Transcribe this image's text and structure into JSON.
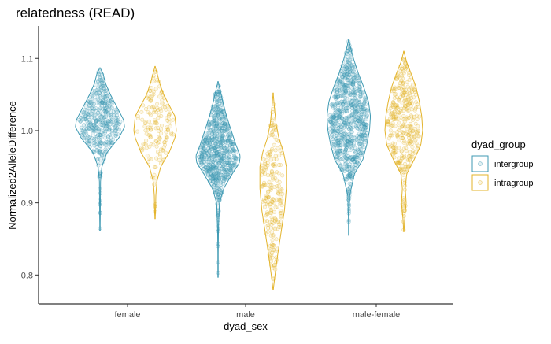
{
  "chart_data": {
    "type": "violin",
    "title": "relatedness (READ)",
    "xlabel": "dyad_sex",
    "ylabel": "Normalized2AlleleDifference",
    "categories": [
      "female",
      "male",
      "male-female"
    ],
    "ylim": [
      0.76,
      1.145
    ],
    "yticks": [
      0.8,
      0.9,
      1.0,
      1.1
    ],
    "ytick_labels": [
      "0.8",
      "0.9",
      "1.0",
      "1.1"
    ],
    "grid": false,
    "legend": {
      "title": "dyad_group",
      "position": "right"
    },
    "series": [
      {
        "name": "intergroup",
        "color": "#3f9ab3",
        "groups": [
          {
            "category": "female",
            "n": 420,
            "profile": [
              [
                0.862,
                0.002
              ],
              [
                0.88,
                0.006
              ],
              [
                0.9,
                0.008
              ],
              [
                0.93,
                0.012
              ],
              [
                0.95,
                0.04
              ],
              [
                0.97,
                0.15
              ],
              [
                0.99,
                0.4
              ],
              [
                1.005,
                0.52
              ],
              [
                1.015,
                0.5
              ],
              [
                1.03,
                0.38
              ],
              [
                1.05,
                0.22
              ],
              [
                1.065,
                0.12
              ],
              [
                1.08,
                0.06
              ],
              [
                1.087,
                0.0
              ]
            ]
          },
          {
            "category": "male",
            "n": 700,
            "profile": [
              [
                0.797,
                0.002
              ],
              [
                0.83,
                0.004
              ],
              [
                0.87,
                0.01
              ],
              [
                0.9,
                0.03
              ],
              [
                0.92,
                0.12
              ],
              [
                0.94,
                0.3
              ],
              [
                0.955,
                0.45
              ],
              [
                0.965,
                0.47
              ],
              [
                0.98,
                0.38
              ],
              [
                1.0,
                0.28
              ],
              [
                1.02,
                0.18
              ],
              [
                1.04,
                0.1
              ],
              [
                1.055,
                0.05
              ],
              [
                1.068,
                0.0
              ]
            ]
          },
          {
            "category": "male-female",
            "n": 800,
            "profile": [
              [
                0.855,
                0.002
              ],
              [
                0.88,
                0.006
              ],
              [
                0.91,
                0.02
              ],
              [
                0.94,
                0.12
              ],
              [
                0.96,
                0.3
              ],
              [
                0.98,
                0.38
              ],
              [
                1.0,
                0.44
              ],
              [
                1.02,
                0.46
              ],
              [
                1.04,
                0.42
              ],
              [
                1.06,
                0.32
              ],
              [
                1.08,
                0.2
              ],
              [
                1.1,
                0.1
              ],
              [
                1.115,
                0.04
              ],
              [
                1.126,
                0.0
              ]
            ]
          }
        ]
      },
      {
        "name": "intragroup",
        "color": "#e3b32a",
        "groups": [
          {
            "category": "female",
            "n": 160,
            "profile": [
              [
                0.878,
                0.003
              ],
              [
                0.89,
                0.01
              ],
              [
                0.91,
                0.016
              ],
              [
                0.93,
                0.04
              ],
              [
                0.95,
                0.12
              ],
              [
                0.97,
                0.3
              ],
              [
                0.99,
                0.42
              ],
              [
                1.0,
                0.45
              ],
              [
                1.02,
                0.42
              ],
              [
                1.035,
                0.3
              ],
              [
                1.05,
                0.18
              ],
              [
                1.065,
                0.1
              ],
              [
                1.08,
                0.04
              ],
              [
                1.089,
                0.0
              ]
            ]
          },
          {
            "category": "male",
            "n": 220,
            "profile": [
              [
                0.78,
                0.003
              ],
              [
                0.8,
                0.04
              ],
              [
                0.83,
                0.1
              ],
              [
                0.86,
                0.17
              ],
              [
                0.89,
                0.24
              ],
              [
                0.92,
                0.28
              ],
              [
                0.95,
                0.28
              ],
              [
                0.97,
                0.22
              ],
              [
                0.99,
                0.12
              ],
              [
                1.01,
                0.06
              ],
              [
                1.03,
                0.03
              ],
              [
                1.052,
                0.0
              ]
            ]
          },
          {
            "category": "male-female",
            "n": 360,
            "profile": [
              [
                0.86,
                0.003
              ],
              [
                0.88,
                0.02
              ],
              [
                0.9,
                0.05
              ],
              [
                0.92,
                0.03
              ],
              [
                0.94,
                0.06
              ],
              [
                0.96,
                0.22
              ],
              [
                0.98,
                0.36
              ],
              [
                1.0,
                0.4
              ],
              [
                1.02,
                0.38
              ],
              [
                1.04,
                0.33
              ],
              [
                1.06,
                0.26
              ],
              [
                1.08,
                0.15
              ],
              [
                1.095,
                0.06
              ],
              [
                1.11,
                0.0
              ]
            ]
          }
        ]
      }
    ]
  }
}
